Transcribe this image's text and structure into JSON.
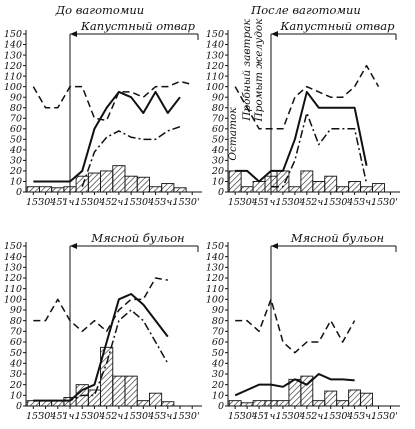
{
  "chart_data": [
    {
      "type": "line",
      "title": "До ваготомии",
      "annotation": "Капустный отвар",
      "ylim": [
        0,
        150
      ],
      "yticks": [
        0,
        10,
        20,
        30,
        40,
        50,
        60,
        70,
        80,
        90,
        100,
        110,
        120,
        130,
        140,
        150
      ],
      "xticks": [
        "15'",
        "30'",
        "45'",
        "1ч.",
        "15'",
        "30'",
        "45'",
        "2ч.",
        "15'",
        "30'",
        "45'",
        "3ч.",
        "15'",
        "30'"
      ],
      "stimulus_at": "1ч.",
      "series": [
        {
          "style": "dashed",
          "x": [
            0,
            1,
            2,
            3,
            4,
            5,
            6,
            7,
            8,
            9,
            10,
            11,
            12,
            13
          ],
          "values": [
            100,
            80,
            80,
            100,
            100,
            70,
            68,
            95,
            95,
            90,
            100,
            100,
            105,
            102
          ]
        },
        {
          "style": "solid",
          "x": [
            0,
            1,
            2,
            3,
            4,
            5,
            6,
            7,
            8,
            9,
            10,
            11,
            12,
            13
          ],
          "values": [
            10,
            10,
            10,
            10,
            20,
            60,
            80,
            95,
            90,
            75,
            95,
            75,
            90,
            null
          ]
        },
        {
          "style": "dash-dot",
          "x": [
            4,
            5,
            6,
            7,
            8,
            9,
            10,
            11,
            12,
            13
          ],
          "values": [
            5,
            38,
            52,
            58,
            52,
            50,
            50,
            58,
            62,
            null
          ]
        },
        {
          "style": "bars",
          "x": [
            0,
            1,
            2,
            3,
            4,
            5,
            6,
            7,
            8,
            9,
            10,
            11,
            12,
            13
          ],
          "values": [
            5,
            5,
            4,
            5,
            15,
            18,
            20,
            25,
            15,
            14,
            5,
            8,
            4,
            null
          ]
        }
      ]
    },
    {
      "type": "line",
      "title": "После ваготомии",
      "annotation": "Капустный отвар",
      "side_labels": [
        "Остаток",
        "Пробный завтрак",
        "Промыт желудок"
      ],
      "ylim": [
        0,
        150
      ],
      "yticks": [
        0,
        10,
        20,
        30,
        40,
        50,
        60,
        70,
        80,
        90,
        100,
        110,
        120,
        130,
        140,
        150
      ],
      "xticks": [
        "15'",
        "30'",
        "45'",
        "1ч.",
        "15'",
        "30'",
        "45'",
        "2ч.",
        "15'",
        "30'",
        "45'",
        "3ч.",
        "15'",
        "30'"
      ],
      "stimulus_at": "1ч.",
      "series": [
        {
          "style": "dashed",
          "x": [
            0,
            1,
            2,
            3,
            4,
            5,
            6,
            7,
            8,
            9,
            10,
            11,
            12,
            13
          ],
          "values": [
            100,
            80,
            60,
            60,
            60,
            90,
            100,
            95,
            90,
            90,
            100,
            120,
            100,
            null
          ]
        },
        {
          "style": "solid",
          "x": [
            0,
            1,
            2,
            3,
            4,
            5,
            6,
            7,
            8,
            9,
            10,
            11,
            12,
            13
          ],
          "values": [
            20,
            20,
            10,
            20,
            20,
            50,
            95,
            80,
            80,
            80,
            80,
            25,
            null,
            null
          ]
        },
        {
          "style": "dash-dot",
          "x": [
            3,
            4,
            5,
            6,
            7,
            8,
            9,
            10,
            11,
            12
          ],
          "values": [
            5,
            5,
            30,
            75,
            45,
            60,
            60,
            60,
            8,
            null
          ]
        },
        {
          "style": "bars",
          "x": [
            0,
            1,
            2,
            3,
            4,
            5,
            6,
            7,
            8,
            9,
            10,
            11,
            12,
            13
          ],
          "values": [
            20,
            5,
            10,
            15,
            20,
            5,
            20,
            10,
            15,
            5,
            10,
            5,
            8,
            null
          ]
        }
      ]
    },
    {
      "type": "line",
      "title": "",
      "annotation": "Мясной бульон",
      "ylim": [
        0,
        150
      ],
      "yticks": [
        0,
        10,
        20,
        30,
        40,
        50,
        60,
        70,
        80,
        90,
        100,
        110,
        120,
        130,
        140,
        150
      ],
      "xticks": [
        "15'",
        "30'",
        "45'",
        "1ч.",
        "15'",
        "30'",
        "45'",
        "2ч.",
        "15'",
        "30'",
        "45'",
        "3ч.",
        "15'",
        "30'"
      ],
      "stimulus_at": "1ч.",
      "series": [
        {
          "style": "dashed",
          "x": [
            0,
            1,
            2,
            3,
            4,
            5,
            6,
            7,
            8,
            9,
            10,
            11,
            12,
            13
          ],
          "values": [
            80,
            80,
            100,
            80,
            70,
            80,
            70,
            90,
            100,
            100,
            120,
            118,
            null,
            null
          ]
        },
        {
          "style": "solid",
          "x": [
            0,
            1,
            2,
            3,
            4,
            5,
            6,
            7,
            8,
            9,
            10,
            11,
            12,
            13
          ],
          "values": [
            5,
            5,
            5,
            5,
            15,
            20,
            60,
            100,
            105,
            95,
            80,
            65,
            null,
            null
          ]
        },
        {
          "style": "dash-dot",
          "x": [
            0,
            1,
            2,
            3,
            4,
            5,
            6,
            7,
            8,
            9,
            10,
            11,
            12,
            13
          ],
          "values": [
            5,
            5,
            5,
            5,
            10,
            10,
            40,
            80,
            90,
            80,
            60,
            40,
            null,
            null
          ]
        },
        {
          "style": "bars",
          "x": [
            0,
            1,
            2,
            3,
            4,
            5,
            6,
            7,
            8,
            9,
            10,
            11,
            12,
            13
          ],
          "values": [
            5,
            5,
            5,
            8,
            20,
            15,
            55,
            28,
            28,
            5,
            12,
            4,
            null,
            null
          ]
        }
      ]
    },
    {
      "type": "line",
      "title": "",
      "annotation": "Мясной бульон",
      "ylim": [
        0,
        150
      ],
      "yticks": [
        0,
        10,
        20,
        30,
        40,
        50,
        60,
        70,
        80,
        90,
        100,
        110,
        120,
        130,
        140,
        150
      ],
      "xticks": [
        "15'",
        "30'",
        "45'",
        "1ч.",
        "15'",
        "30'",
        "45'",
        "2ч.",
        "15'",
        "30'",
        "45'",
        "3ч.",
        "15'",
        "30'"
      ],
      "stimulus_at": "1ч.",
      "series": [
        {
          "style": "dashed",
          "x": [
            0,
            1,
            2,
            3,
            4,
            5,
            6,
            7,
            8,
            9,
            10,
            11,
            12,
            13
          ],
          "values": [
            80,
            80,
            70,
            100,
            60,
            50,
            60,
            60,
            80,
            60,
            80,
            null,
            null,
            null
          ]
        },
        {
          "style": "solid",
          "x": [
            0,
            1,
            2,
            3,
            4,
            5,
            6,
            7,
            8,
            9,
            10,
            11,
            12,
            13
          ],
          "values": [
            10,
            15,
            20,
            20,
            18,
            25,
            20,
            30,
            25,
            25,
            24,
            null,
            null,
            null
          ]
        },
        {
          "style": "bars",
          "x": [
            0,
            1,
            2,
            3,
            4,
            5,
            6,
            7,
            8,
            9,
            10,
            11,
            12,
            13
          ],
          "values": [
            5,
            3,
            5,
            5,
            5,
            25,
            28,
            5,
            14,
            5,
            15,
            12,
            null,
            null
          ]
        }
      ]
    }
  ]
}
